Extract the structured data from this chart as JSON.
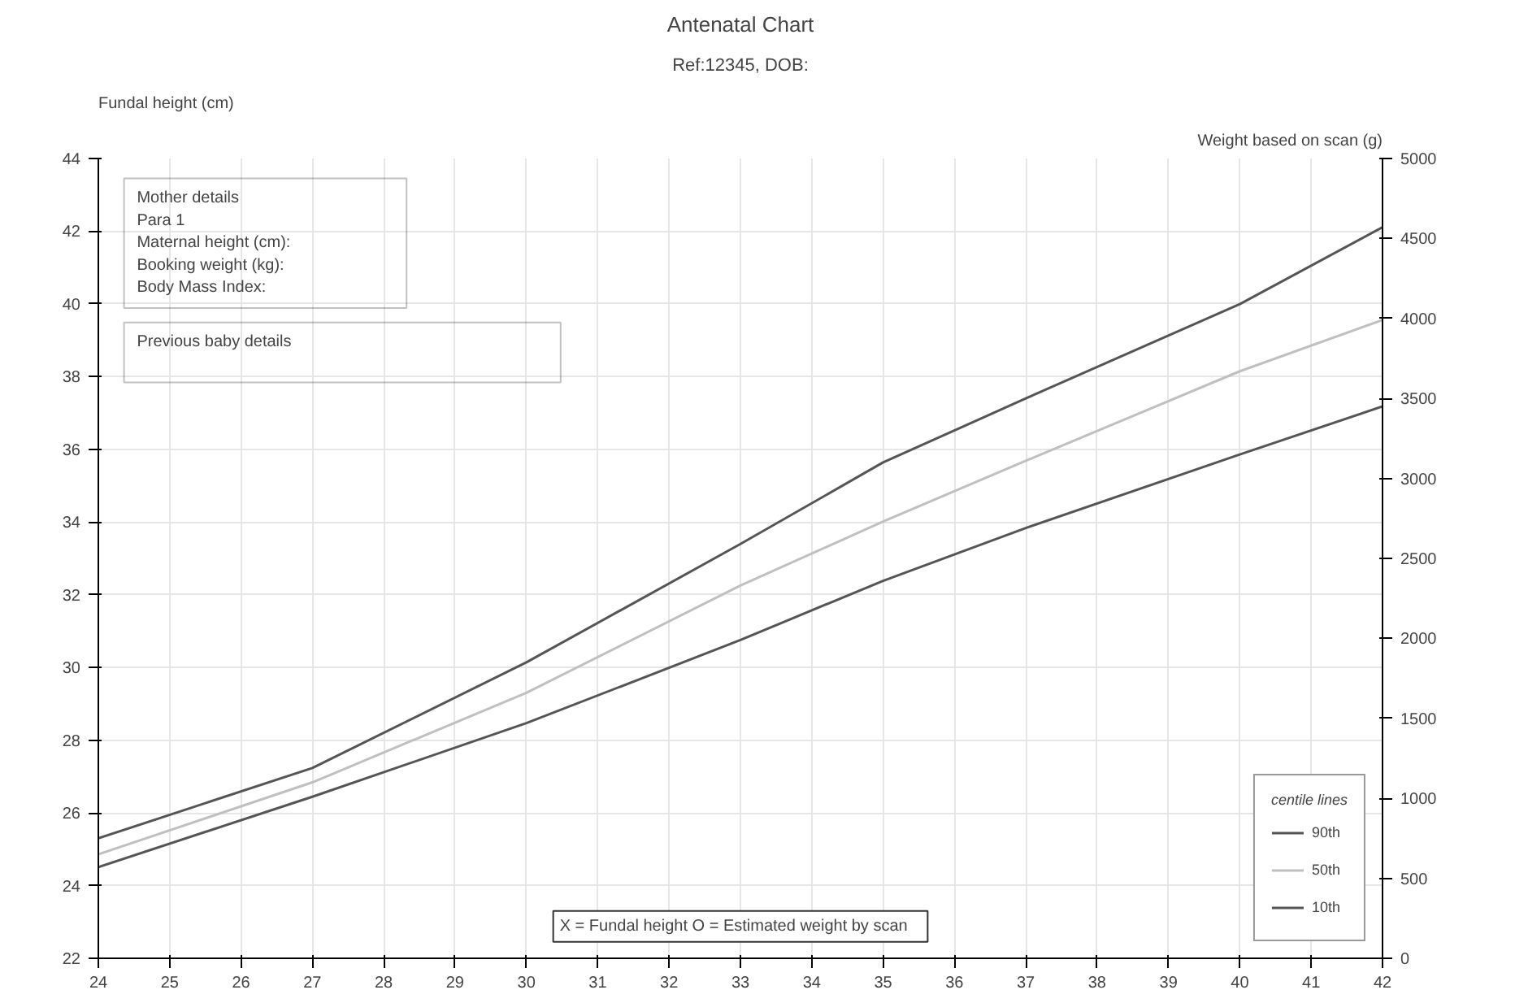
{
  "chart_data": {
    "type": "line",
    "title": "Antenatal Chart",
    "subtitle": "Ref:12345, DOB:",
    "ylabel": "Fundal height (cm)",
    "y2label": "Weight based on scan (g)",
    "legend_title": "centile lines",
    "x": [
      24,
      27,
      30,
      33,
      35,
      37,
      40,
      42
    ],
    "xlim": [
      24,
      42
    ],
    "xticks": [
      24,
      25,
      26,
      27,
      28,
      29,
      30,
      31,
      32,
      33,
      34,
      35,
      36,
      37,
      38,
      39,
      40,
      41,
      42
    ],
    "ylim": [
      22,
      44
    ],
    "yticks": [
      22,
      24,
      26,
      28,
      30,
      32,
      34,
      36,
      38,
      40,
      42,
      44
    ],
    "y2lim": [
      0,
      5000
    ],
    "y2ticks": [
      0,
      500,
      1000,
      1500,
      2000,
      2500,
      3000,
      3500,
      4000,
      4500,
      5000
    ],
    "series": [
      {
        "name": "90th",
        "color": "#555555",
        "axis": "y2",
        "values": [
          750,
          1190,
          1850,
          2590,
          3100,
          3500,
          4090,
          4570
        ]
      },
      {
        "name": "50th",
        "color": "#c0c0c0",
        "axis": "y2",
        "values": [
          650,
          1100,
          1660,
          2330,
          2730,
          3110,
          3670,
          3990
        ]
      },
      {
        "name": "10th",
        "color": "#555555",
        "axis": "y2",
        "values": [
          570,
          1010,
          1470,
          1990,
          2360,
          2690,
          3150,
          3450
        ]
      }
    ],
    "annotations": [
      "Mother details",
      "Para 1",
      "Maternal height (cm):",
      "Booking weight (kg):",
      "Body Mass Index:",
      "Previous baby details",
      "X = Fundal height    O = Estimated weight by scan"
    ],
    "grid": true,
    "legend": "bottom right",
    "marker": "none",
    "line_style": "solid"
  }
}
